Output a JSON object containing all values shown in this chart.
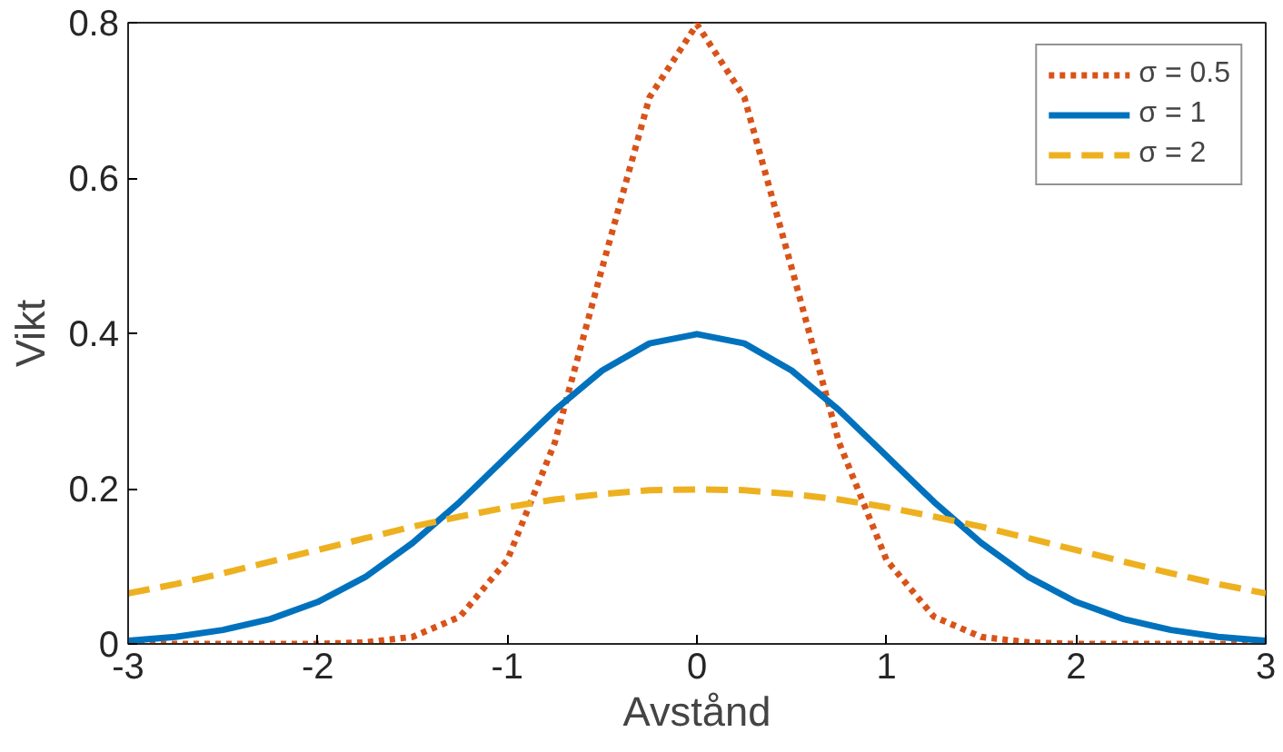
{
  "chart_data": {
    "type": "line",
    "xlabel": "Avstånd",
    "ylabel": "Vikt",
    "x": [
      -3,
      -2.75,
      -2.5,
      -2.25,
      -2,
      -1.75,
      -1.5,
      -1.25,
      -1,
      -0.75,
      -0.5,
      -0.25,
      0,
      0.25,
      0.5,
      0.75,
      1,
      1.25,
      1.5,
      1.75,
      2,
      2.25,
      2.5,
      2.75,
      3
    ],
    "series": [
      {
        "name": "σ = 0.5",
        "color": "#d95319",
        "line_style": "dotted",
        "values": [
          0,
          0,
          0,
          0,
          0,
          0.002,
          0.009,
          0.035,
          0.108,
          0.259,
          0.484,
          0.704,
          0.798,
          0.704,
          0.484,
          0.259,
          0.108,
          0.035,
          0.009,
          0.002,
          0,
          0,
          0,
          0,
          0
        ]
      },
      {
        "name": "σ = 1",
        "color": "#0072bd",
        "line_style": "solid",
        "values": [
          0.004,
          0.009,
          0.018,
          0.032,
          0.054,
          0.086,
          0.13,
          0.183,
          0.242,
          0.301,
          0.352,
          0.387,
          0.399,
          0.387,
          0.352,
          0.301,
          0.242,
          0.183,
          0.13,
          0.086,
          0.054,
          0.032,
          0.018,
          0.009,
          0.004
        ]
      },
      {
        "name": "σ = 2",
        "color": "#edb120",
        "line_style": "dashed",
        "values": [
          0.065,
          0.077,
          0.091,
          0.106,
          0.121,
          0.136,
          0.151,
          0.164,
          0.176,
          0.186,
          0.193,
          0.198,
          0.199,
          0.198,
          0.193,
          0.186,
          0.176,
          0.164,
          0.151,
          0.136,
          0.121,
          0.106,
          0.091,
          0.077,
          0.065
        ]
      }
    ],
    "xlim": [
      -3,
      3
    ],
    "ylim": [
      0,
      0.8
    ],
    "xticks": [
      -3,
      -2,
      -1,
      0,
      1,
      2,
      3
    ],
    "yticks": [
      0,
      0.2,
      0.4,
      0.6,
      0.8
    ],
    "grid": false,
    "legend": "top right"
  }
}
